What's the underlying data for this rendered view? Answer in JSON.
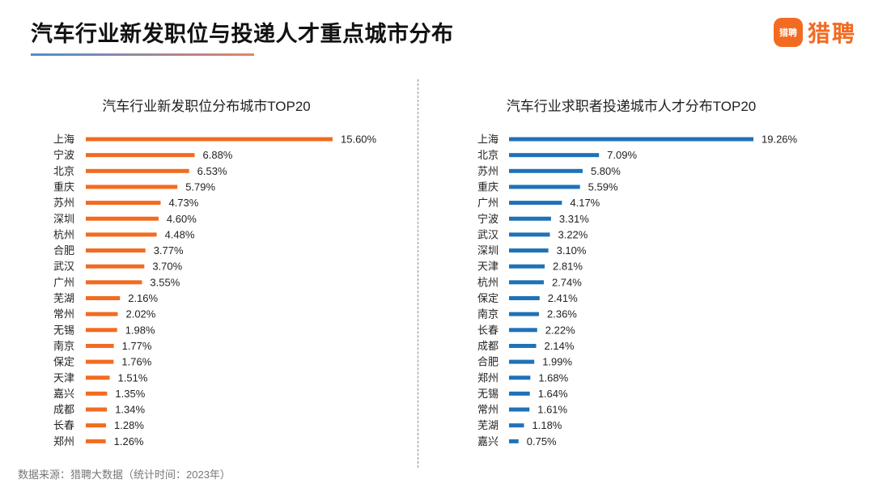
{
  "header": {
    "title": "汽车行业新发职位与投递人才重点城市分布",
    "logo_badge": "猎聘",
    "logo_text": "猎聘"
  },
  "colors": {
    "left_bar": "#F26B21",
    "right_bar": "#1F72B8"
  },
  "footer": {
    "source": "数据来源：猎聘大数据（统计时间：2023年）"
  },
  "chart_data": [
    {
      "type": "bar",
      "orientation": "horizontal",
      "title": "汽车行业新发职位分布城市TOP20",
      "categories": [
        "上海",
        "宁波",
        "北京",
        "重庆",
        "苏州",
        "深圳",
        "杭州",
        "合肥",
        "武汉",
        "广州",
        "芜湖",
        "常州",
        "无锡",
        "南京",
        "保定",
        "天津",
        "嘉兴",
        "成都",
        "长春",
        "郑州"
      ],
      "values": [
        15.6,
        6.88,
        6.53,
        5.79,
        4.73,
        4.6,
        4.48,
        3.77,
        3.7,
        3.55,
        2.16,
        2.02,
        1.98,
        1.77,
        1.76,
        1.51,
        1.35,
        1.34,
        1.28,
        1.26
      ],
      "labels": [
        "15.60%",
        "6.88%",
        "6.53%",
        "5.79%",
        "4.73%",
        "4.60%",
        "4.48%",
        "3.77%",
        "3.70%",
        "3.55%",
        "2.16%",
        "2.02%",
        "1.98%",
        "1.77%",
        "1.76%",
        "1.51%",
        "1.35%",
        "1.34%",
        "1.28%",
        "1.26%"
      ],
      "unit": "%",
      "xlim": [
        0,
        15.6
      ],
      "grid": false
    },
    {
      "type": "bar",
      "orientation": "horizontal",
      "title": "汽车行业求职者投递城市人才分布TOP20",
      "categories": [
        "上海",
        "北京",
        "苏州",
        "重庆",
        "广州",
        "宁波",
        "武汉",
        "深圳",
        "天津",
        "杭州",
        "保定",
        "南京",
        "长春",
        "成都",
        "合肥",
        "郑州",
        "无锡",
        "常州",
        "芜湖",
        "嘉兴"
      ],
      "values": [
        19.26,
        7.09,
        5.8,
        5.59,
        4.17,
        3.31,
        3.22,
        3.1,
        2.81,
        2.74,
        2.41,
        2.36,
        2.22,
        2.14,
        1.99,
        1.68,
        1.64,
        1.61,
        1.18,
        0.75
      ],
      "labels": [
        "19.26%",
        "7.09%",
        "5.80%",
        "5.59%",
        "4.17%",
        "3.31%",
        "3.22%",
        "3.10%",
        "2.81%",
        "2.74%",
        "2.41%",
        "2.36%",
        "2.22%",
        "2.14%",
        "1.99%",
        "1.68%",
        "1.64%",
        "1.61%",
        "1.18%",
        "0.75%"
      ],
      "unit": "%",
      "xlim": [
        0,
        19.26
      ],
      "grid": false
    }
  ]
}
